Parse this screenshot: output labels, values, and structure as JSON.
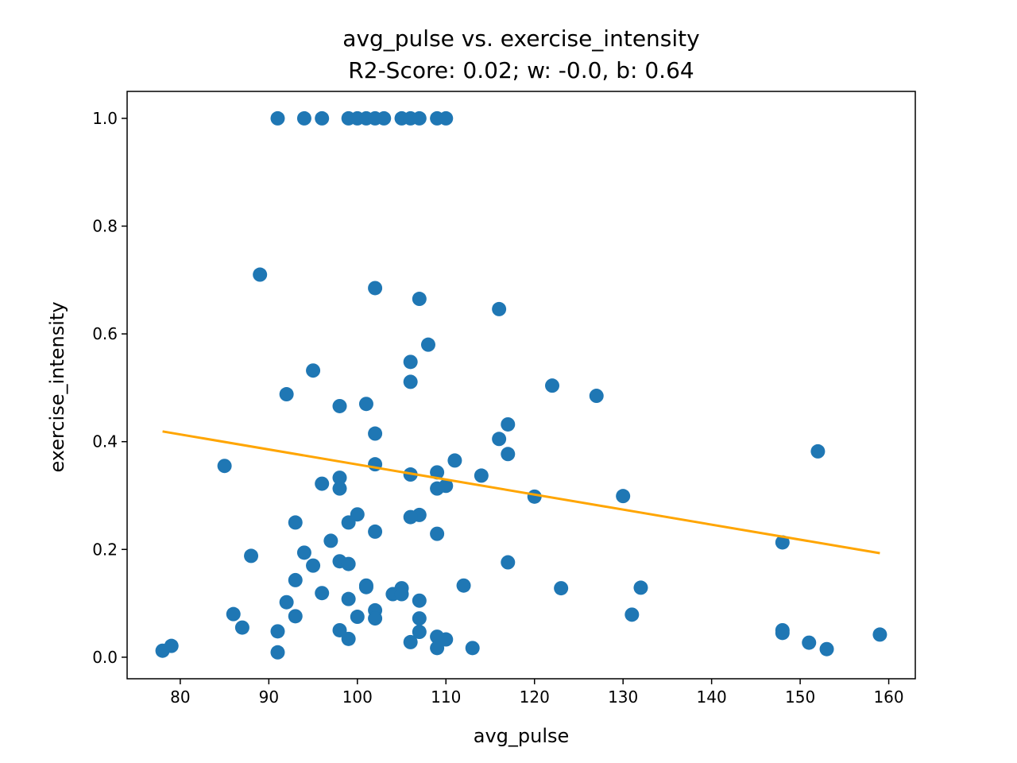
{
  "chart_data": {
    "type": "scatter",
    "title": "avg_pulse vs. exercise_intensity",
    "subtitle": "R2-Score: 0.02; w: -0.0, b: 0.64",
    "xlabel": "avg_pulse",
    "ylabel": "exercise_intensity",
    "xlim": [
      74.0,
      163.0
    ],
    "ylim": [
      -0.04,
      1.05
    ],
    "xticks": [
      80,
      90,
      100,
      110,
      120,
      130,
      140,
      150,
      160
    ],
    "yticks": [
      0.0,
      0.2,
      0.4,
      0.6,
      0.8,
      1.0
    ],
    "xtick_labels": [
      "80",
      "90",
      "100",
      "110",
      "120",
      "130",
      "140",
      "150",
      "160"
    ],
    "ytick_labels": [
      "0.0",
      "0.2",
      "0.4",
      "0.6",
      "0.8",
      "1.0"
    ],
    "grid": false,
    "colors": {
      "points": "#1f77b4",
      "fit_line": "#ffa500"
    },
    "points": [
      {
        "x": 91,
        "y": 1.0
      },
      {
        "x": 94,
        "y": 1.0
      },
      {
        "x": 96,
        "y": 1.0
      },
      {
        "x": 99,
        "y": 1.0
      },
      {
        "x": 100,
        "y": 1.0
      },
      {
        "x": 101,
        "y": 1.0
      },
      {
        "x": 102,
        "y": 1.0
      },
      {
        "x": 103,
        "y": 1.0
      },
      {
        "x": 105,
        "y": 1.0
      },
      {
        "x": 106,
        "y": 1.0
      },
      {
        "x": 107,
        "y": 1.0
      },
      {
        "x": 109,
        "y": 1.0
      },
      {
        "x": 110,
        "y": 1.0
      },
      {
        "x": 89,
        "y": 0.71
      },
      {
        "x": 102,
        "y": 0.685
      },
      {
        "x": 107,
        "y": 0.665
      },
      {
        "x": 116,
        "y": 0.646
      },
      {
        "x": 108,
        "y": 0.58
      },
      {
        "x": 106,
        "y": 0.548
      },
      {
        "x": 95,
        "y": 0.532
      },
      {
        "x": 106,
        "y": 0.511
      },
      {
        "x": 122,
        "y": 0.504
      },
      {
        "x": 92,
        "y": 0.488
      },
      {
        "x": 127,
        "y": 0.485
      },
      {
        "x": 101,
        "y": 0.47
      },
      {
        "x": 98,
        "y": 0.466
      },
      {
        "x": 117,
        "y": 0.432
      },
      {
        "x": 102,
        "y": 0.415
      },
      {
        "x": 116,
        "y": 0.405
      },
      {
        "x": 152,
        "y": 0.382
      },
      {
        "x": 117,
        "y": 0.377
      },
      {
        "x": 111,
        "y": 0.365
      },
      {
        "x": 102,
        "y": 0.358
      },
      {
        "x": 85,
        "y": 0.355
      },
      {
        "x": 109,
        "y": 0.343
      },
      {
        "x": 106,
        "y": 0.339
      },
      {
        "x": 114,
        "y": 0.337
      },
      {
        "x": 98,
        "y": 0.333
      },
      {
        "x": 96,
        "y": 0.322
      },
      {
        "x": 110,
        "y": 0.318
      },
      {
        "x": 98,
        "y": 0.313
      },
      {
        "x": 109,
        "y": 0.313
      },
      {
        "x": 120,
        "y": 0.298
      },
      {
        "x": 130,
        "y": 0.299
      },
      {
        "x": 100,
        "y": 0.265
      },
      {
        "x": 107,
        "y": 0.264
      },
      {
        "x": 106,
        "y": 0.26
      },
      {
        "x": 93,
        "y": 0.25
      },
      {
        "x": 99,
        "y": 0.25
      },
      {
        "x": 102,
        "y": 0.233
      },
      {
        "x": 109,
        "y": 0.229
      },
      {
        "x": 97,
        "y": 0.216
      },
      {
        "x": 148,
        "y": 0.213
      },
      {
        "x": 94,
        "y": 0.194
      },
      {
        "x": 88,
        "y": 0.188
      },
      {
        "x": 98,
        "y": 0.178
      },
      {
        "x": 117,
        "y": 0.176
      },
      {
        "x": 99,
        "y": 0.173
      },
      {
        "x": 95,
        "y": 0.17
      },
      {
        "x": 93,
        "y": 0.143
      },
      {
        "x": 101,
        "y": 0.133
      },
      {
        "x": 112,
        "y": 0.133
      },
      {
        "x": 101,
        "y": 0.13
      },
      {
        "x": 132,
        "y": 0.129
      },
      {
        "x": 105,
        "y": 0.128
      },
      {
        "x": 123,
        "y": 0.128
      },
      {
        "x": 96,
        "y": 0.119
      },
      {
        "x": 104,
        "y": 0.117
      },
      {
        "x": 105,
        "y": 0.117
      },
      {
        "x": 99,
        "y": 0.108
      },
      {
        "x": 107,
        "y": 0.105
      },
      {
        "x": 92,
        "y": 0.102
      },
      {
        "x": 102,
        "y": 0.087
      },
      {
        "x": 86,
        "y": 0.08
      },
      {
        "x": 131,
        "y": 0.079
      },
      {
        "x": 93,
        "y": 0.076
      },
      {
        "x": 100,
        "y": 0.075
      },
      {
        "x": 102,
        "y": 0.072
      },
      {
        "x": 107,
        "y": 0.072
      },
      {
        "x": 87,
        "y": 0.055
      },
      {
        "x": 98,
        "y": 0.05
      },
      {
        "x": 148,
        "y": 0.05
      },
      {
        "x": 91,
        "y": 0.048
      },
      {
        "x": 107,
        "y": 0.047
      },
      {
        "x": 148,
        "y": 0.045
      },
      {
        "x": 159,
        "y": 0.042
      },
      {
        "x": 109,
        "y": 0.038
      },
      {
        "x": 99,
        "y": 0.034
      },
      {
        "x": 110,
        "y": 0.033
      },
      {
        "x": 106,
        "y": 0.028
      },
      {
        "x": 151,
        "y": 0.027
      },
      {
        "x": 79,
        "y": 0.021
      },
      {
        "x": 109,
        "y": 0.017
      },
      {
        "x": 113,
        "y": 0.017
      },
      {
        "x": 153,
        "y": 0.015
      },
      {
        "x": 78,
        "y": 0.012
      },
      {
        "x": 91,
        "y": 0.009
      }
    ],
    "fit_line": {
      "x": [
        78,
        159
      ],
      "y": [
        0.419,
        0.193
      ]
    }
  }
}
